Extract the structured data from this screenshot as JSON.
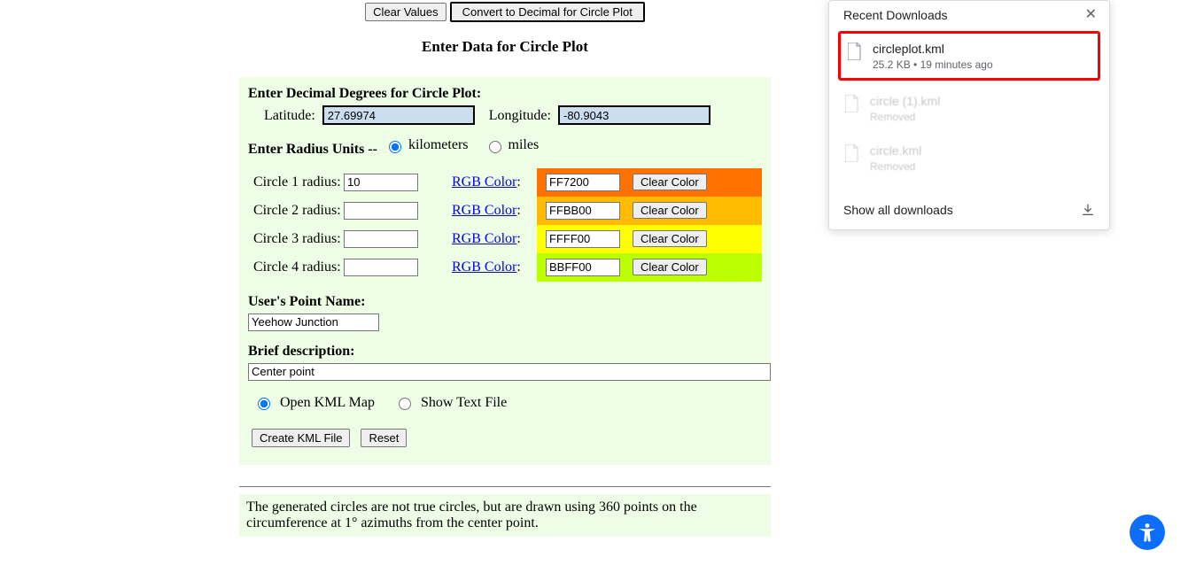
{
  "top": {
    "clear_values": "Clear Values",
    "convert": "Convert to Decimal for Circle Plot",
    "page_title": "Enter Data for Circle Plot"
  },
  "coords": {
    "heading": "Enter Decimal Degrees for Circle Plot:",
    "lat_label": "Latitude:",
    "lat_value": "27.69974",
    "lon_label": "Longitude:",
    "lon_value": "-80.9043"
  },
  "radius_units": {
    "heading": "Enter Radius Units -- ",
    "km_label": "kilometers",
    "mi_label": "miles",
    "selected": "km"
  },
  "rgb_link_text": "RGB Color",
  "clear_color_label": "Clear Color",
  "circles": [
    {
      "label": "Circle 1 radius:",
      "radius": "10",
      "hex": "FF7200",
      "bg": "#ff7200"
    },
    {
      "label": "Circle 2 radius:",
      "radius": "",
      "hex": "FFBB00",
      "bg": "#ffbb00"
    },
    {
      "label": "Circle 3 radius:",
      "radius": "",
      "hex": "FFFF00",
      "bg": "#ffff00"
    },
    {
      "label": "Circle 4 radius:",
      "radius": "",
      "hex": "BBFF00",
      "bg": "#bbff00"
    }
  ],
  "point_name": {
    "heading": "User's Point Name:",
    "value": "Yeehow Junction"
  },
  "description": {
    "heading": "Brief description:",
    "value": "Center point"
  },
  "output": {
    "open_kml_label": "Open KML Map",
    "show_text_label": "Show Text File",
    "selected": "open_kml"
  },
  "actions": {
    "create": "Create KML File",
    "reset": "Reset"
  },
  "note": "The generated circles are not true circles, but are drawn using 360 points on the circumference at 1° azimuths from the center point.",
  "downloads": {
    "title": "Recent Downloads",
    "items": [
      {
        "name": "circleplot.kml",
        "meta": "25.2 KB • 19 minutes ago",
        "highlight": true,
        "faded": false
      },
      {
        "name": "circle (1).kml",
        "meta": "Removed",
        "highlight": false,
        "faded": true
      },
      {
        "name": "circle.kml",
        "meta": "Removed",
        "highlight": false,
        "faded": true
      }
    ],
    "show_all": "Show all downloads"
  }
}
